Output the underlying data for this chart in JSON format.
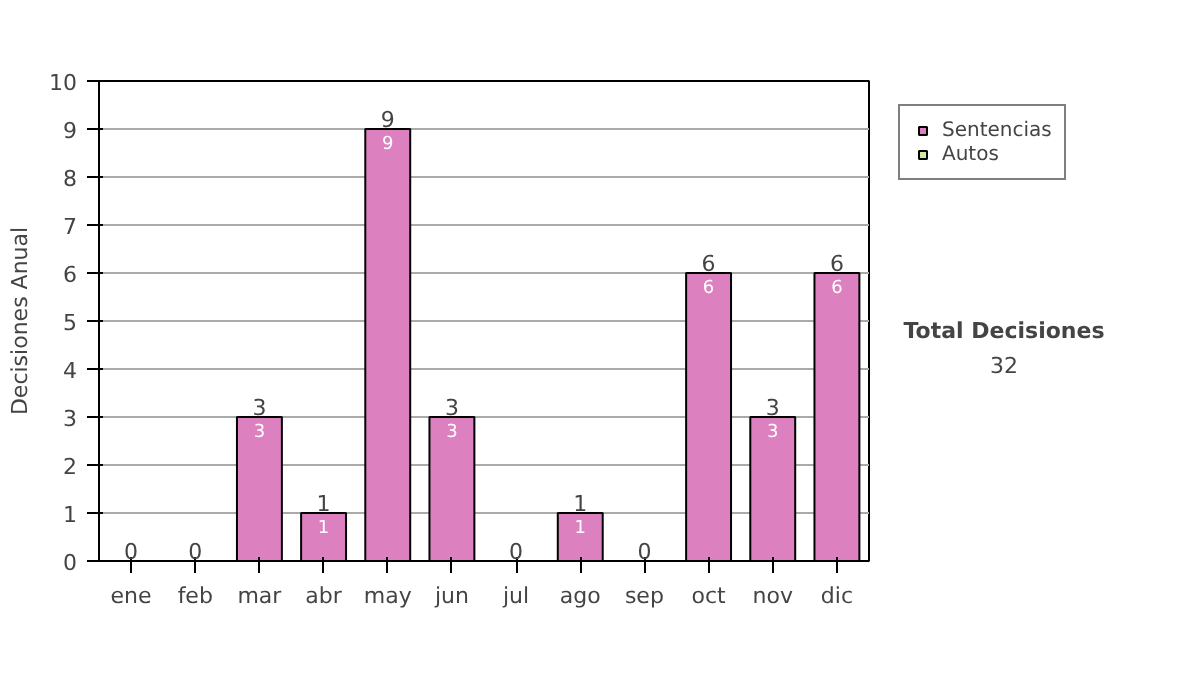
{
  "chart_data": {
    "type": "bar",
    "stacked": true,
    "ylabel": "Decisiones Anual",
    "categories": [
      "ene",
      "feb",
      "mar",
      "abr",
      "may",
      "jun",
      "jul",
      "ago",
      "sep",
      "oct",
      "nov",
      "dic"
    ],
    "series": [
      {
        "name": "Sentencias",
        "color": "#dd80c0",
        "values": [
          0,
          0,
          3,
          1,
          9,
          3,
          0,
          1,
          0,
          6,
          3,
          6
        ],
        "value_labels": [
          null,
          null,
          "3",
          "1",
          "9",
          "3",
          null,
          "1",
          null,
          "6",
          "3",
          "6"
        ]
      },
      {
        "name": "Autos",
        "color": "#ccee99",
        "values": [
          0,
          0,
          0,
          0,
          0,
          0,
          0,
          0,
          0,
          0,
          0,
          0
        ]
      }
    ],
    "totals": [
      "0",
      "0",
      "3",
      "1",
      "9",
      "3",
      "0",
      "1",
      "0",
      "6",
      "3",
      "6"
    ],
    "ylim": [
      0,
      10
    ],
    "yticks": [
      0,
      1,
      2,
      3,
      4,
      5,
      6,
      7,
      8,
      9,
      10
    ],
    "grid": "y",
    "legend": "right",
    "annotations": [
      "Total Decisiones",
      "32"
    ]
  }
}
